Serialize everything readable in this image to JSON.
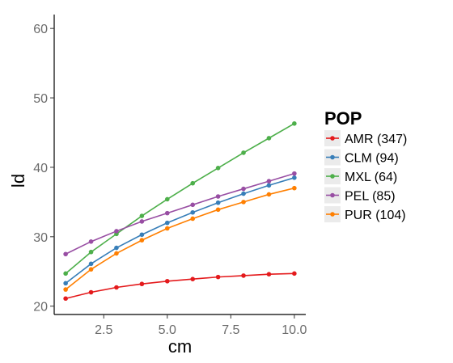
{
  "chart_data": {
    "type": "line",
    "xlabel": "cm",
    "ylabel": "ld",
    "xlim": [
      0.55,
      10.45
    ],
    "ylim": [
      18.8,
      62
    ],
    "xticks": [
      2.5,
      5.0,
      7.5,
      10.0
    ],
    "xtick_labels": [
      "2.5",
      "5.0",
      "7.5",
      "10.0"
    ],
    "yticks": [
      20,
      30,
      40,
      50,
      60
    ],
    "ytick_labels": [
      "20",
      "30",
      "40",
      "50",
      "60"
    ],
    "grid": false,
    "legend": {
      "title": "POP",
      "position": "right"
    },
    "x": [
      1,
      2,
      3,
      4,
      5,
      6,
      7,
      8,
      9,
      10
    ],
    "series": [
      {
        "name": "AMR (347)",
        "color": "#e41a1c",
        "values": [
          21.1,
          22.0,
          22.7,
          23.2,
          23.6,
          23.9,
          24.2,
          24.4,
          24.6,
          24.7
        ]
      },
      {
        "name": "CLM (94)",
        "color": "#377eb8",
        "values": [
          23.3,
          26.1,
          28.4,
          30.3,
          32.0,
          33.5,
          34.9,
          36.2,
          37.4,
          38.5
        ]
      },
      {
        "name": "MXL  (64)",
        "color": "#4daf4a",
        "values": [
          24.7,
          27.8,
          30.4,
          33.0,
          35.4,
          37.7,
          39.9,
          42.1,
          44.2,
          46.3
        ]
      },
      {
        "name": "PEL (85)",
        "color": "#984ea3",
        "values": [
          27.5,
          29.3,
          30.8,
          32.2,
          33.4,
          34.6,
          35.8,
          36.9,
          38.0,
          39.1
        ]
      },
      {
        "name": "PUR (104)",
        "color": "#ff7f00",
        "values": [
          22.4,
          25.3,
          27.6,
          29.5,
          31.2,
          32.6,
          33.9,
          35.0,
          36.1,
          37.0
        ]
      }
    ]
  }
}
